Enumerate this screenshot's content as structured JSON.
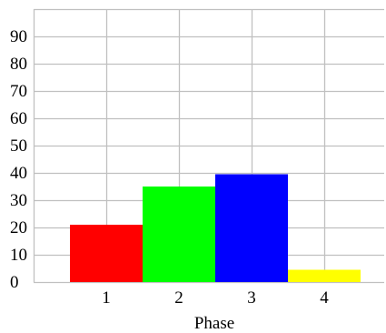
{
  "chart_data": {
    "type": "bar",
    "title": "",
    "xlabel": "Phase",
    "ylabel": "",
    "categories": [
      "1",
      "2",
      "3",
      "4"
    ],
    "values": [
      21,
      35,
      39.5,
      4.5
    ],
    "bar_colors": [
      "#ff0000",
      "#00ff00",
      "#0000ff",
      "#ffff00"
    ],
    "ylim": [
      0,
      100
    ],
    "yticks": [
      0,
      10,
      20,
      30,
      40,
      50,
      60,
      70,
      80,
      90
    ],
    "grid": true,
    "legend": "none"
  },
  "colors": {
    "grid": "#c0c0c0",
    "background": "#ffffff"
  }
}
